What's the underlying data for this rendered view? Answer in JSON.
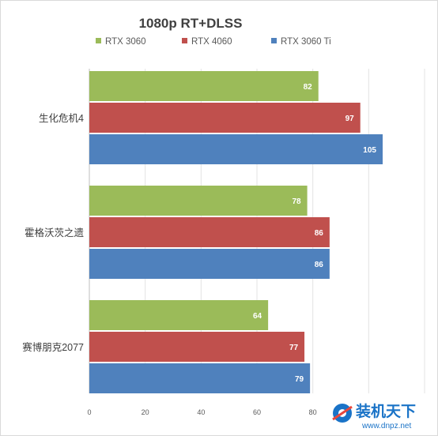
{
  "chart_data": {
    "type": "bar",
    "orientation": "horizontal",
    "title": "1080p RT+DLSS",
    "categories": [
      "生化危机4",
      "霍格沃茨之遗",
      "赛博朋克2077"
    ],
    "series": [
      {
        "name": "RTX 3060",
        "color": "#9bbb59",
        "values": [
          82,
          78,
          64
        ]
      },
      {
        "name": "RTX 4060",
        "color": "#c0504d",
        "values": [
          97,
          86,
          77
        ]
      },
      {
        "name": "RTX 3060 Ti",
        "color": "#4f81bd",
        "values": [
          105,
          86,
          79
        ]
      }
    ],
    "xlim": [
      0,
      120
    ],
    "x_ticks": [
      0,
      20,
      40,
      60,
      80
    ],
    "grid": true,
    "legend_position": "top",
    "data_labels": true
  },
  "watermark": {
    "text": "装机天下",
    "url": "www.dnpz.net",
    "icon": "gear-logo-icon"
  }
}
